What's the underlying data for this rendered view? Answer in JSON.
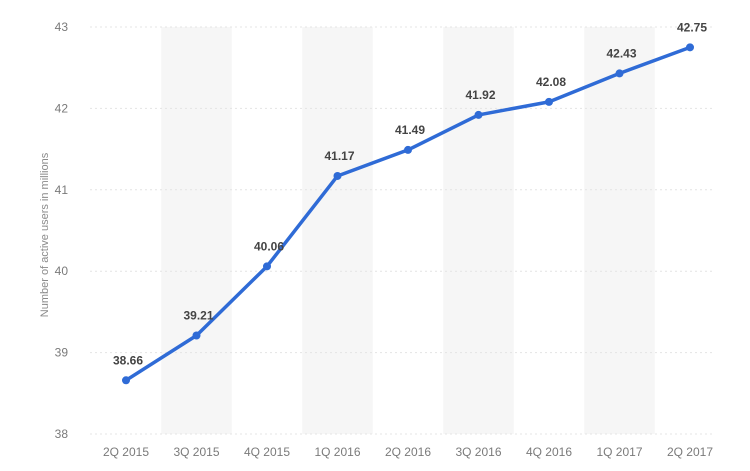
{
  "chart_data": {
    "type": "line",
    "title": "",
    "xlabel": "",
    "ylabel": "Number of active users in millions",
    "ylim": [
      38,
      43
    ],
    "yticks": [
      38,
      39,
      40,
      41,
      42,
      43
    ],
    "grid": true,
    "legend": "none",
    "categories": [
      "2Q 2015",
      "3Q 2015",
      "4Q 2015",
      "1Q 2016",
      "2Q 2016",
      "3Q 2016",
      "4Q 2016",
      "1Q 2017",
      "2Q 2017"
    ],
    "series": [
      {
        "values": [
          38.66,
          39.21,
          40.06,
          41.17,
          41.49,
          41.92,
          42.08,
          42.43,
          42.75
        ],
        "labels": [
          "38.66",
          "39.21",
          "40.06",
          "41.17",
          "41.49",
          "41.92",
          "42.08",
          "42.43",
          "42.75"
        ],
        "color": "#2f6bd6"
      }
    ]
  }
}
